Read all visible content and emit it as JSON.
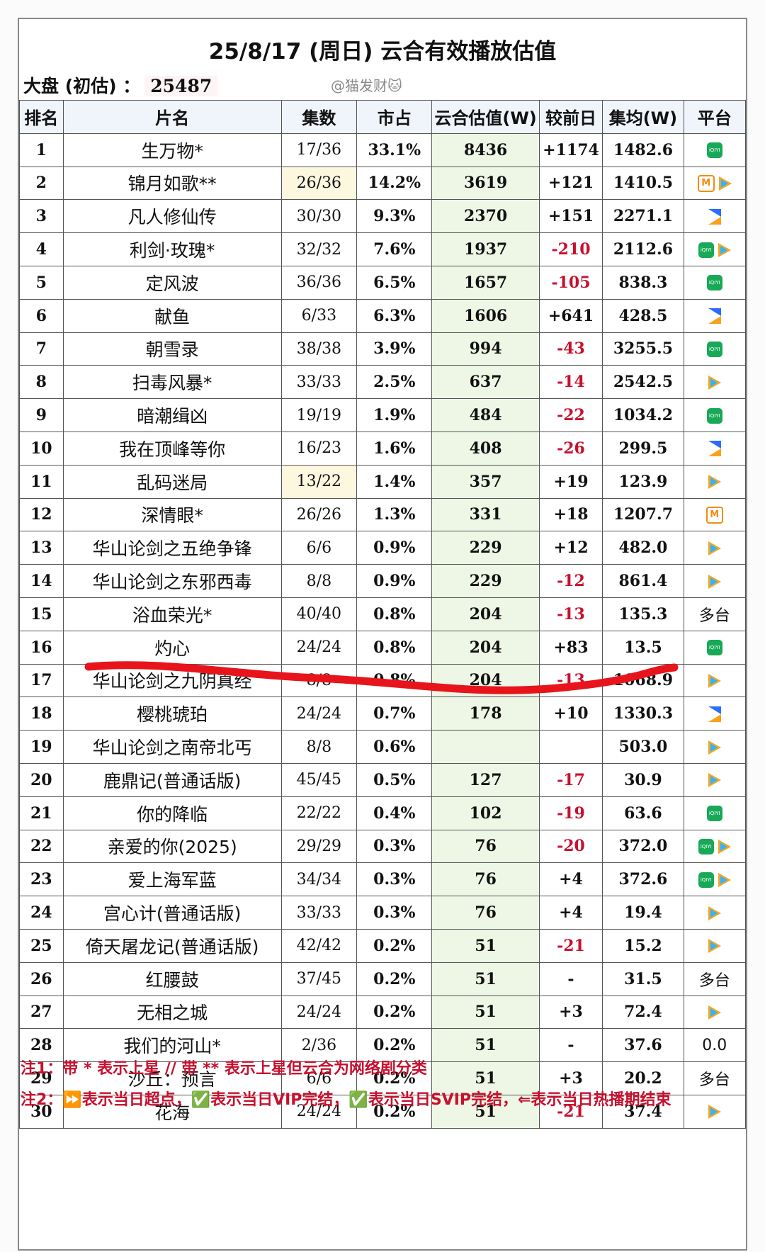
{
  "header": {
    "title": "25/8/17 (周日) 云合有效播放估值",
    "market_label": "大盘 (初估) ：",
    "market_value": "25487",
    "watermark": "@猫发财🐱"
  },
  "columns": [
    "排名",
    "片名",
    "集数",
    "市占",
    "云合估值(W)",
    "较前日",
    "集均(W)",
    "平台"
  ],
  "rows": [
    {
      "rank": "1",
      "name": "生万物*",
      "eps": "17/36",
      "share": "33.1%",
      "value": "8436",
      "change": "+1174",
      "avg": "1482.6",
      "platforms": [
        "iqiyi"
      ]
    },
    {
      "rank": "2",
      "name": "锦月如歌**",
      "eps": "26/36",
      "share": "14.2%",
      "value": "3619",
      "change": "+121",
      "avg": "1410.5",
      "platforms": [
        "mango",
        "tencent"
      ]
    },
    {
      "rank": "3",
      "name": "凡人修仙传",
      "eps": "30/30",
      "share": "9.3%",
      "value": "2370",
      "change": "+151",
      "avg": "2271.1",
      "platforms": [
        "youku"
      ]
    },
    {
      "rank": "4",
      "name": "利剑·玫瑰*",
      "eps": "32/32",
      "share": "7.6%",
      "value": "1937",
      "change": "-210",
      "avg": "2112.6",
      "platforms": [
        "iqiyi",
        "tencent"
      ]
    },
    {
      "rank": "5",
      "name": "定风波",
      "eps": "36/36",
      "share": "6.5%",
      "value": "1657",
      "change": "-105",
      "avg": "838.3",
      "platforms": [
        "iqiyi"
      ]
    },
    {
      "rank": "6",
      "name": "献鱼",
      "eps": "6/33",
      "share": "6.3%",
      "value": "1606",
      "change": "+641",
      "avg": "428.5",
      "platforms": [
        "youku"
      ]
    },
    {
      "rank": "7",
      "name": "朝雪录",
      "eps": "38/38",
      "share": "3.9%",
      "value": "994",
      "change": "-43",
      "avg": "3255.5",
      "platforms": [
        "iqiyi"
      ]
    },
    {
      "rank": "8",
      "name": "扫毒风暴*",
      "eps": "33/33",
      "share": "2.5%",
      "value": "637",
      "change": "-14",
      "avg": "2542.5",
      "platforms": [
        "tencent"
      ]
    },
    {
      "rank": "9",
      "name": "暗潮缉凶",
      "eps": "19/19",
      "share": "1.9%",
      "value": "484",
      "change": "-22",
      "avg": "1034.2",
      "platforms": [
        "iqiyi"
      ]
    },
    {
      "rank": "10",
      "name": "我在顶峰等你",
      "eps": "16/23",
      "share": "1.6%",
      "value": "408",
      "change": "-26",
      "avg": "299.5",
      "platforms": [
        "youku"
      ]
    },
    {
      "rank": "11",
      "name": "乱码迷局",
      "eps": "13/22",
      "share": "1.4%",
      "value": "357",
      "change": "+19",
      "avg": "123.9",
      "platforms": [
        "tencent"
      ]
    },
    {
      "rank": "12",
      "name": "深情眼*",
      "eps": "26/26",
      "share": "1.3%",
      "value": "331",
      "change": "+18",
      "avg": "1207.7",
      "platforms": [
        "mango"
      ]
    },
    {
      "rank": "13",
      "name": "华山论剑之五绝争锋",
      "eps": "6/6",
      "share": "0.9%",
      "value": "229",
      "change": "+12",
      "avg": "482.0",
      "platforms": [
        "tencent"
      ]
    },
    {
      "rank": "14",
      "name": "华山论剑之东邪西毒",
      "eps": "8/8",
      "share": "0.9%",
      "value": "229",
      "change": "-12",
      "avg": "861.4",
      "platforms": [
        "tencent"
      ]
    },
    {
      "rank": "15",
      "name": "浴血荣光*",
      "eps": "40/40",
      "share": "0.8%",
      "value": "204",
      "change": "-13",
      "avg": "135.3",
      "platforms_text": "多台"
    },
    {
      "rank": "16",
      "name": "灼心",
      "eps": "24/24",
      "share": "0.8%",
      "value": "204",
      "change": "+83",
      "avg": "13.5",
      "platforms": [
        "iqiyi"
      ]
    },
    {
      "rank": "17",
      "name": "华山论剑之九阴真经",
      "eps": "8/8",
      "share": "0.8%",
      "value": "204",
      "change": "-13",
      "avg": "1068.9",
      "platforms": [
        "tencent"
      ]
    },
    {
      "rank": "18",
      "name": "樱桃琥珀",
      "eps": "24/24",
      "share": "0.7%",
      "value": "178",
      "change": "+10",
      "avg": "1330.3",
      "platforms": [
        "youku"
      ]
    },
    {
      "rank": "19",
      "name": "华山论剑之南帝北丐",
      "eps": "8/8",
      "share": "0.6%",
      "value": "",
      "change": "",
      "avg": "503.0",
      "platforms": [
        "tencent"
      ]
    },
    {
      "rank": "20",
      "name": "鹿鼎记(普通话版)",
      "eps": "45/45",
      "share": "0.5%",
      "value": "127",
      "change": "-17",
      "avg": "30.9",
      "platforms": [
        "tencent"
      ]
    },
    {
      "rank": "21",
      "name": "你的降临",
      "eps": "22/22",
      "share": "0.4%",
      "value": "102",
      "change": "-19",
      "avg": "63.6",
      "platforms": [
        "iqiyi"
      ]
    },
    {
      "rank": "22",
      "name": "亲爱的你(2025)",
      "eps": "29/29",
      "share": "0.3%",
      "value": "76",
      "change": "-20",
      "avg": "372.0",
      "platforms": [
        "iqiyi",
        "tencent"
      ]
    },
    {
      "rank": "23",
      "name": "爱上海军蓝",
      "eps": "34/34",
      "share": "0.3%",
      "value": "76",
      "change": "+4",
      "avg": "372.6",
      "platforms": [
        "iqiyi",
        "tencent"
      ]
    },
    {
      "rank": "24",
      "name": "宫心计(普通话版)",
      "eps": "33/33",
      "share": "0.3%",
      "value": "76",
      "change": "+4",
      "avg": "19.4",
      "platforms": [
        "tencent"
      ]
    },
    {
      "rank": "25",
      "name": "倚天屠龙记(普通话版)",
      "eps": "42/42",
      "share": "0.2%",
      "value": "51",
      "change": "-21",
      "avg": "15.2",
      "platforms": [
        "tencent"
      ]
    },
    {
      "rank": "26",
      "name": "红腰鼓",
      "eps": "37/45",
      "share": "0.2%",
      "value": "51",
      "change": "-",
      "avg": "31.5",
      "platforms_text": "多台"
    },
    {
      "rank": "27",
      "name": "无相之城",
      "eps": "24/24",
      "share": "0.2%",
      "value": "51",
      "change": "+3",
      "avg": "72.4",
      "platforms": [
        "tencent"
      ]
    },
    {
      "rank": "28",
      "name": "我们的河山*",
      "eps": "2/36",
      "share": "0.2%",
      "value": "51",
      "change": "-",
      "avg": "37.6",
      "platforms_text": "0.0"
    },
    {
      "rank": "29",
      "name": "沙丘：预言",
      "eps": "6/6",
      "share": "0.2%",
      "value": "51",
      "change": "+3",
      "avg": "20.2",
      "platforms_text": "多台"
    },
    {
      "rank": "30",
      "name": "花海",
      "eps": "24/24",
      "share": "0.2%",
      "value": "51",
      "change": "-21",
      "avg": "37.4",
      "platforms": [
        "tencent"
      ]
    }
  ],
  "notes": {
    "note1": "注1：带 * 表示上星 // 带 ** 表示上星但云合为网络剧分类",
    "note2": "注2：⏩表示当日超点，✅表示当日VIP完结，✅表示当日SVIP完结，⇐表示当日热播期结束"
  },
  "colors": {
    "negative": "#c8102e",
    "value_bg": "#eef6e6",
    "header_bg": "#f0f4fb",
    "annotation_line": "#e8141c"
  }
}
